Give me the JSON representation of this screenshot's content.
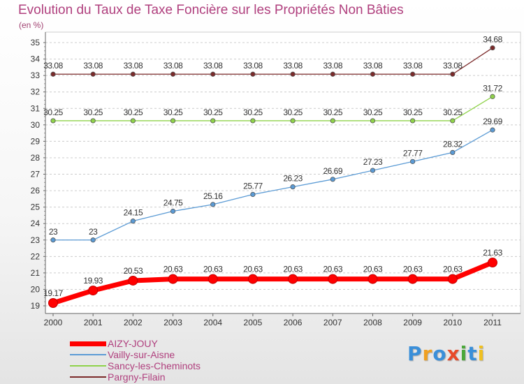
{
  "header": {
    "title": "Evolution du Taux de Taxe Foncière sur les Propriétés Non Bâties",
    "unit": "(en %)"
  },
  "chart_data": {
    "type": "line",
    "title": "Evolution du Taux de Taxe Foncière sur les Propriétés Non Bâties",
    "ylabel": "(en %)",
    "xlabel": "",
    "x": [
      "2000",
      "2001",
      "2002",
      "2003",
      "2004",
      "2005",
      "2006",
      "2007",
      "2008",
      "2009",
      "2010",
      "2011"
    ],
    "ylim": [
      19,
      35
    ],
    "yticks": [
      19,
      20,
      21,
      22,
      23,
      24,
      25,
      26,
      27,
      28,
      29,
      30,
      31,
      32,
      33,
      34,
      35
    ],
    "grid": "horizontal dashed",
    "legend_position": "bottom-left",
    "series": [
      {
        "name": "AIZY-JOUY",
        "color": "#ff0000",
        "highlight": true,
        "values": [
          19.17,
          19.93,
          20.53,
          20.63,
          20.63,
          20.63,
          20.63,
          20.63,
          20.63,
          20.63,
          20.63,
          21.63
        ],
        "labels": [
          "19.17",
          "19.93",
          "20.53",
          "20.63",
          "20.63",
          "20.63",
          "20.63",
          "20.63",
          "20.63",
          "20.63",
          "20.63",
          "21.63"
        ]
      },
      {
        "name": "Vailly-sur-Aisne",
        "color": "#5b9bd5",
        "values": [
          23,
          23,
          24.15,
          24.75,
          25.16,
          25.77,
          26.23,
          26.69,
          27.23,
          27.77,
          28.32,
          29.69
        ],
        "labels": [
          "23",
          "23",
          "24.15",
          "24.75",
          "25.16",
          "25.77",
          "26.23",
          "26.69",
          "27.23",
          "27.77",
          "28.32",
          "29.69"
        ]
      },
      {
        "name": "Sancy-les-Cheminots",
        "color": "#8fd24a",
        "values": [
          30.25,
          30.25,
          30.25,
          30.25,
          30.25,
          30.25,
          30.25,
          30.25,
          30.25,
          30.25,
          30.25,
          31.72
        ],
        "labels": [
          "30.25",
          "30.25",
          "30.25",
          "30.25",
          "30.25",
          "30.25",
          "30.25",
          "30.25",
          "30.25",
          "30.25",
          "30.25",
          "31.72"
        ]
      },
      {
        "name": "Pargny-Filain",
        "color": "#7b2a2a",
        "values": [
          33.08,
          33.08,
          33.08,
          33.08,
          33.08,
          33.08,
          33.08,
          33.08,
          33.08,
          33.08,
          33.08,
          34.68
        ],
        "labels": [
          "33.08",
          "33.08",
          "33.08",
          "33.08",
          "33.08",
          "33.08",
          "33.08",
          "33.08",
          "33.08",
          "33.08",
          "33.08",
          "34.68"
        ]
      }
    ]
  },
  "logo": {
    "letters": [
      "P",
      "r",
      "o",
      "x",
      "i",
      "t",
      "i"
    ],
    "colors": [
      "#3a8fd9",
      "#f0a020",
      "#3a8fd9",
      "#e84a2a",
      "#4aa83a",
      "#3a8fd9",
      "#f0c020"
    ]
  }
}
